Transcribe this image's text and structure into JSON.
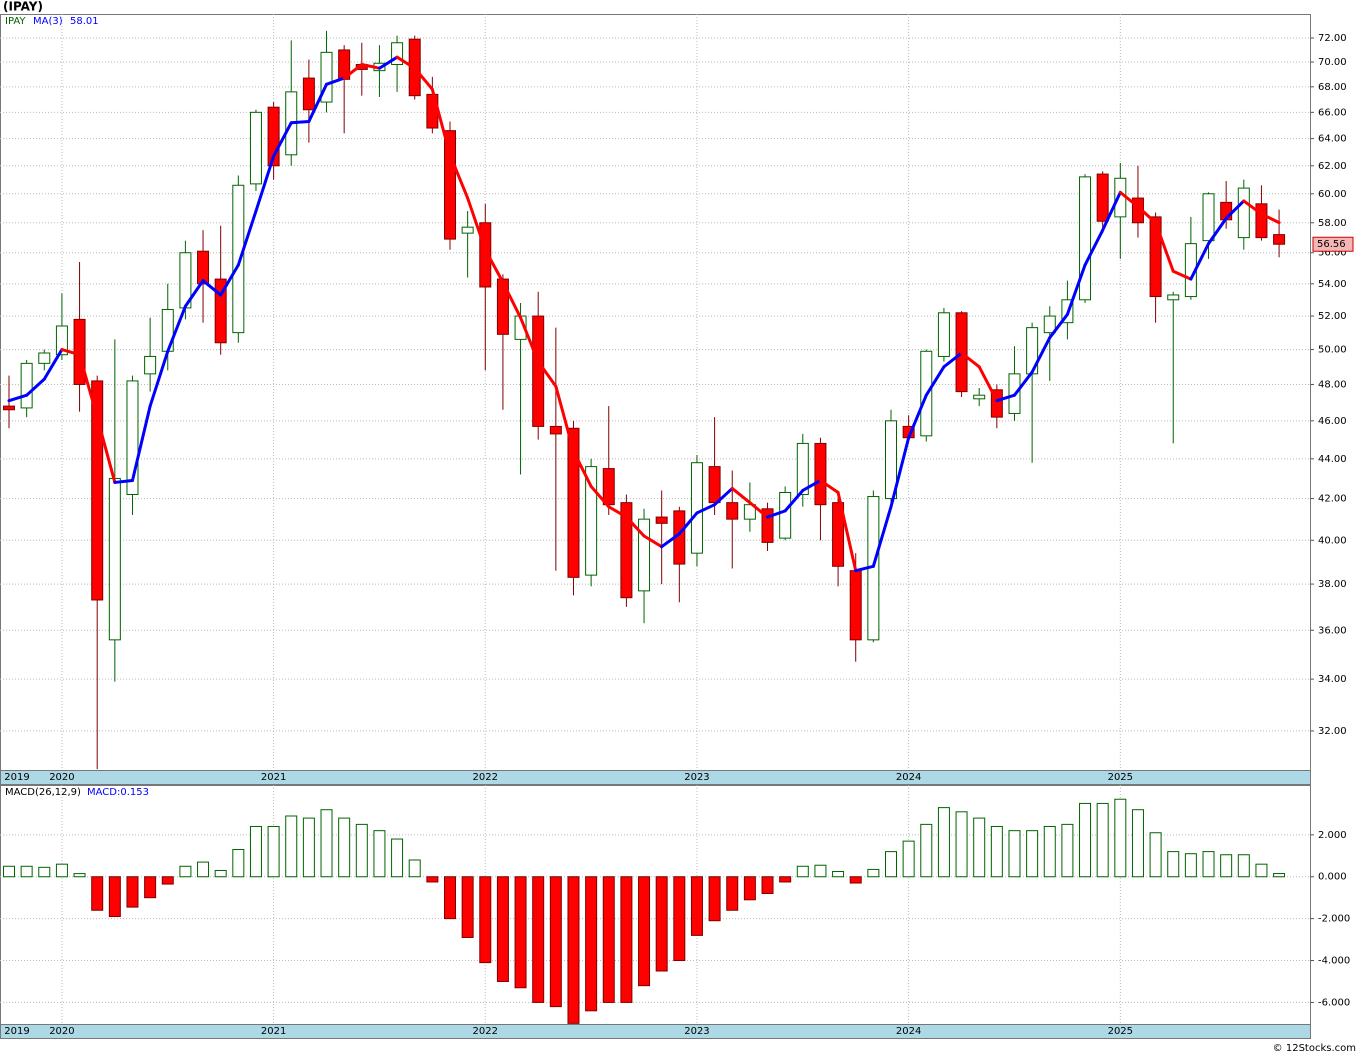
{
  "chart_data": [
    {
      "type": "candlestick",
      "title": "(IPAY)",
      "symbol": "IPAY",
      "log": true,
      "grid": true,
      "categories": [
        "2019",
        null,
        null,
        "2020",
        null,
        null,
        null,
        null,
        null,
        null,
        null,
        null,
        null,
        null,
        null,
        "2021",
        null,
        null,
        null,
        null,
        null,
        null,
        null,
        null,
        null,
        null,
        null,
        "2022",
        null,
        null,
        null,
        null,
        null,
        null,
        null,
        null,
        null,
        null,
        null,
        "2023",
        null,
        null,
        null,
        null,
        null,
        null,
        null,
        null,
        null,
        null,
        null,
        "2024",
        null,
        null,
        null,
        null,
        null,
        null,
        null,
        null,
        null,
        null,
        null,
        "2025",
        null,
        null,
        null,
        null,
        null,
        null,
        null,
        null,
        null
      ],
      "open": [
        46.8,
        46.7,
        49.2,
        49.7,
        51.8,
        48.2,
        35.6,
        42.2,
        48.6,
        49.9,
        52.5,
        56.1,
        54.3,
        51,
        60.7,
        66.4,
        62.8,
        68.7,
        66.8,
        71,
        69.8,
        69.3,
        69.8,
        71.9,
        67.4,
        64.6,
        57.3,
        58,
        54.3,
        50.6,
        52,
        45.7,
        45.6,
        38.4,
        43.5,
        41.8,
        37.7,
        41.1,
        41.4,
        39.4,
        43.6,
        41.8,
        41,
        41.5,
        40.1,
        42.2,
        44.8,
        41.8,
        38.6,
        35.6,
        42,
        45.7,
        45.2,
        49.6,
        52.2,
        47.2,
        47.7,
        46.4,
        48.6,
        51,
        51.6,
        53,
        61.4,
        58.4,
        59.7,
        58.4,
        53,
        53.2,
        56.8,
        59.4,
        57,
        59.3,
        57.2
      ],
      "high": [
        48.5,
        49.4,
        50,
        53.4,
        55.4,
        48.5,
        50.6,
        48.5,
        51.9,
        54,
        56.8,
        57.5,
        57.8,
        61.3,
        66.2,
        66.8,
        71.8,
        70.2,
        72.6,
        71.4,
        71.6,
        71.4,
        72.2,
        72.2,
        68.8,
        65.3,
        58.8,
        59.3,
        54.6,
        52.8,
        53.5,
        51.3,
        46,
        44,
        46.8,
        42.2,
        41.5,
        42.4,
        41.6,
        44.2,
        46.2,
        43.4,
        42.8,
        41.8,
        42.6,
        45.3,
        45.1,
        42,
        39.4,
        42.4,
        46.6,
        46.3,
        50,
        52.5,
        52.3,
        47.8,
        48,
        50.2,
        51.6,
        52.6,
        54.2,
        61.4,
        61.6,
        62.2,
        62,
        58.7,
        53.5,
        58.4,
        60.1,
        60.9,
        61,
        60.6,
        58.9
      ],
      "low": [
        45.6,
        46.2,
        48.8,
        49.4,
        46.5,
        30.6,
        33.9,
        41.2,
        47.6,
        48.8,
        51.8,
        51.6,
        49.7,
        50.4,
        60.2,
        61,
        62,
        63.7,
        66,
        64.4,
        67.3,
        67.2,
        67.6,
        67,
        64.4,
        56.2,
        54.4,
        48.8,
        46.6,
        43.2,
        45,
        38.6,
        37.5,
        37.9,
        41.2,
        37,
        36.3,
        38,
        37.2,
        38.8,
        41.2,
        38.7,
        40.4,
        39.5,
        40,
        41.6,
        40,
        37.9,
        34.7,
        35.5,
        41.8,
        44.9,
        44.9,
        49.3,
        47.3,
        46.8,
        45.6,
        46,
        43.8,
        48.2,
        50.6,
        52.8,
        57.3,
        55.6,
        57,
        51.6,
        44.8,
        53,
        55.6,
        57.6,
        56.2,
        56.8,
        55.7
      ],
      "close": [
        46.6,
        49.2,
        49.8,
        51.4,
        48,
        37.3,
        43,
        48.2,
        49.6,
        52.4,
        56,
        54,
        50.4,
        60.6,
        66,
        62,
        67.6,
        66.2,
        70.8,
        68.6,
        69.4,
        69.9,
        71.6,
        67.3,
        64.8,
        56.9,
        57.7,
        53.8,
        50.9,
        52,
        45.7,
        45.3,
        38.3,
        43.6,
        41.7,
        37.4,
        41,
        40.8,
        38.9,
        43.8,
        41.8,
        41,
        41.7,
        39.9,
        42.3,
        44.8,
        41.7,
        38.8,
        35.6,
        42.1,
        46,
        45.1,
        49.9,
        52.2,
        47.6,
        47.4,
        46.2,
        48.6,
        51.3,
        52,
        53,
        61.2,
        58.1,
        61.1,
        58,
        53.2,
        53.3,
        56.6,
        60,
        58.2,
        60.4,
        57,
        56.56
      ],
      "up_color": "#006400",
      "down_color": "#ff0000",
      "ma": {
        "name": "MA(3)",
        "color": "#0000ff",
        "values": [
          47.1,
          47.4,
          48.3,
          50,
          49.7,
          46.2,
          42.8,
          42.9,
          46.8,
          49.9,
          52.6,
          54.2,
          53.3,
          55.2,
          58.8,
          62.7,
          65.2,
          65.3,
          68.2,
          68.7,
          69.8,
          69.5,
          70.4,
          69.5,
          67.8,
          62.8,
          59.7,
          56.2,
          54.1,
          51.9,
          49.3,
          47.9,
          44.4,
          42.6,
          41.6,
          41.1,
          40.2,
          39.7,
          40.3,
          41.3,
          41.7,
          42.5,
          41.8,
          41.1,
          41.4,
          42.4,
          42.9,
          42.3,
          38.6,
          38.8,
          41.6,
          45.1,
          47.4,
          49,
          49.8,
          49,
          47.1,
          47.4,
          48.7,
          50.7,
          52.1,
          55.2,
          57.5,
          60.1,
          59.1,
          58,
          54.8,
          54.3,
          56.6,
          58.3,
          59.5,
          58.6,
          58.01
        ],
        "colors": [
          "#0000ff",
          "#0000ff",
          "#0000ff",
          "#0000ff",
          "#ff0000",
          "#ff0000",
          "#ff0000",
          "#0000ff",
          "#0000ff",
          "#0000ff",
          "#0000ff",
          "#0000ff",
          "#0000ff",
          "#0000ff",
          "#0000ff",
          "#0000ff",
          "#0000ff",
          "#0000ff",
          "#0000ff",
          "#0000ff",
          "#ff0000",
          "#ff0000",
          "#0000ff",
          "#ff0000",
          "#ff0000",
          "#ff0000",
          "#ff0000",
          "#ff0000",
          "#ff0000",
          "#ff0000",
          "#ff0000",
          "#ff0000",
          "#ff0000",
          "#ff0000",
          "#ff0000",
          "#ff0000",
          "#ff0000",
          "#ff0000",
          "#0000ff",
          "#0000ff",
          "#0000ff",
          "#0000ff",
          "#ff0000",
          "#ff0000",
          "#0000ff",
          "#0000ff",
          "#0000ff",
          "#ff0000",
          "#ff0000",
          "#0000ff",
          "#0000ff",
          "#0000ff",
          "#0000ff",
          "#0000ff",
          "#0000ff",
          "#ff0000",
          "#ff0000",
          "#0000ff",
          "#0000ff",
          "#0000ff",
          "#0000ff",
          "#0000ff",
          "#0000ff",
          "#0000ff",
          "#ff0000",
          "#ff0000",
          "#ff0000",
          "#ff0000",
          "#0000ff",
          "#0000ff",
          "#0000ff",
          "#ff0000",
          "#ff0000"
        ]
      },
      "ylim": [
        30.57,
        74.05
      ],
      "yticks": [
        {
          "value": 32,
          "label": "32.00"
        },
        {
          "value": 34,
          "label": "34.00"
        },
        {
          "value": 36,
          "label": "36.00"
        },
        {
          "value": 38,
          "label": "38.00"
        },
        {
          "value": 40,
          "label": "40.00"
        },
        {
          "value": 42,
          "label": "42.00"
        },
        {
          "value": 44,
          "label": "44.00"
        },
        {
          "value": 46,
          "label": "46.00"
        },
        {
          "value": 48,
          "label": "48.00"
        },
        {
          "value": 50,
          "label": "50.00"
        },
        {
          "value": 52,
          "label": "52.00"
        },
        {
          "value": 54,
          "label": "54.00"
        },
        {
          "value": 56,
          "label": "56.00"
        },
        {
          "value": 58,
          "label": "58.00"
        },
        {
          "value": 60,
          "label": "60.00"
        },
        {
          "value": 62,
          "label": "62.00"
        },
        {
          "value": 64,
          "label": "64.00"
        },
        {
          "value": 66,
          "label": "66.00"
        },
        {
          "value": 68,
          "label": "68.00"
        },
        {
          "value": 70,
          "label": "70.00"
        },
        {
          "value": 72,
          "label": "72.00"
        }
      ],
      "footer": "© 12Stocks.com"
    },
    {
      "type": "bar",
      "name": "MACD(26,12,9)",
      "value_label": "MACD:0.153",
      "grid": true,
      "categories": [
        "2019",
        null,
        null,
        "2020",
        null,
        null,
        null,
        null,
        null,
        null,
        null,
        null,
        null,
        null,
        null,
        "2021",
        null,
        null,
        null,
        null,
        null,
        null,
        null,
        null,
        null,
        null,
        null,
        "2022",
        null,
        null,
        null,
        null,
        null,
        null,
        null,
        null,
        null,
        null,
        null,
        "2023",
        null,
        null,
        null,
        null,
        null,
        null,
        null,
        null,
        null,
        null,
        null,
        "2024",
        null,
        null,
        null,
        null,
        null,
        null,
        null,
        null,
        null,
        null,
        null,
        "2025",
        null,
        null,
        null,
        null,
        null,
        null,
        null,
        null,
        null
      ],
      "values": [
        0.5,
        0.5,
        0.45,
        0.6,
        0.15,
        -1.6,
        -1.9,
        -1.45,
        -1.0,
        -0.35,
        0.5,
        0.7,
        0.3,
        1.3,
        2.4,
        2.4,
        2.9,
        2.8,
        3.2,
        2.8,
        2.5,
        2.2,
        1.8,
        0.8,
        -0.25,
        -2.0,
        -2.9,
        -4.1,
        -5.0,
        -5.3,
        -6.0,
        -6.2,
        -7.0,
        -6.4,
        -6.0,
        -6.0,
        -5.2,
        -4.5,
        -4.0,
        -2.8,
        -2.1,
        -1.6,
        -1.1,
        -0.8,
        -0.25,
        0.5,
        0.55,
        0.25,
        -0.3,
        0.35,
        1.2,
        1.7,
        2.5,
        3.3,
        3.1,
        2.8,
        2.4,
        2.2,
        2.2,
        2.4,
        2.5,
        3.5,
        3.5,
        3.7,
        3.2,
        2.1,
        1.2,
        1.1,
        1.2,
        1.05,
        1.05,
        0.6,
        0.153
      ],
      "up_color": "#006400",
      "down_color": "#ff0000",
      "ylim": [
        -7.03,
        4.38
      ],
      "yticks": [
        {
          "value": 2,
          "label": "2.000"
        },
        {
          "value": 0,
          "label": "0.000"
        },
        {
          "value": -2,
          "label": "-2.000"
        },
        {
          "value": -4,
          "label": "-4.000"
        },
        {
          "value": -6,
          "label": "-6.000"
        }
      ]
    }
  ]
}
